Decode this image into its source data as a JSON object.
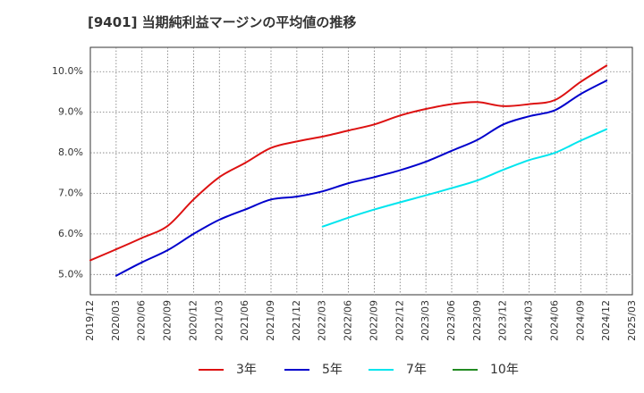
{
  "chart_data": {
    "type": "line",
    "title": "[9401]  当期純利益マージンの平均値の推移",
    "xlabel": "",
    "ylabel": "",
    "ylim": [
      4.5,
      10.6
    ],
    "y_ticks": [
      5.0,
      6.0,
      7.0,
      8.0,
      9.0,
      10.0
    ],
    "y_tick_labels": [
      "5.0%",
      "6.0%",
      "7.0%",
      "8.0%",
      "9.0%",
      "10.0%"
    ],
    "x_tick_labels": [
      "2019/12",
      "2020/03",
      "2020/06",
      "2020/09",
      "2020/12",
      "2021/03",
      "2021/06",
      "2021/09",
      "2021/12",
      "2022/03",
      "2022/06",
      "2022/09",
      "2022/12",
      "2023/03",
      "2023/06",
      "2023/09",
      "2023/12",
      "2024/03",
      "2024/06",
      "2024/09",
      "2024/12",
      "2025/03"
    ],
    "grid": true,
    "legend_position": "bottom",
    "series": [
      {
        "name": "3年",
        "color": "#dd1111",
        "x": [
          "2019/12",
          "2020/03",
          "2020/06",
          "2020/09",
          "2020/12",
          "2021/03",
          "2021/06",
          "2021/09",
          "2021/12",
          "2022/03",
          "2022/06",
          "2022/09",
          "2022/12",
          "2023/03",
          "2023/06",
          "2023/09",
          "2023/12",
          "2024/03",
          "2024/06",
          "2024/09",
          "2024/12"
        ],
        "values": [
          5.35,
          5.62,
          5.9,
          6.2,
          6.85,
          7.4,
          7.75,
          8.12,
          8.28,
          8.4,
          8.55,
          8.7,
          8.92,
          9.08,
          9.2,
          9.25,
          9.15,
          9.2,
          9.3,
          9.75,
          10.15
        ]
      },
      {
        "name": "5年",
        "color": "#0000cc",
        "x": [
          "2020/03",
          "2020/06",
          "2020/09",
          "2020/12",
          "2021/03",
          "2021/06",
          "2021/09",
          "2021/12",
          "2022/03",
          "2022/06",
          "2022/09",
          "2022/12",
          "2023/03",
          "2023/06",
          "2023/09",
          "2023/12",
          "2024/03",
          "2024/06",
          "2024/09",
          "2024/12"
        ],
        "values": [
          4.97,
          5.3,
          5.6,
          6.0,
          6.35,
          6.6,
          6.85,
          6.92,
          7.05,
          7.25,
          7.4,
          7.57,
          7.78,
          8.05,
          8.32,
          8.7,
          8.9,
          9.05,
          9.45,
          9.78
        ]
      },
      {
        "name": "7年",
        "color": "#00e5ee",
        "x": [
          "2022/03",
          "2022/06",
          "2022/09",
          "2022/12",
          "2023/03",
          "2023/06",
          "2023/09",
          "2023/12",
          "2024/03",
          "2024/06",
          "2024/09",
          "2024/12"
        ],
        "values": [
          6.18,
          6.4,
          6.6,
          6.78,
          6.95,
          7.13,
          7.32,
          7.58,
          7.82,
          8.0,
          8.3,
          8.58
        ]
      },
      {
        "name": "10年",
        "color": "#228b22",
        "x": [],
        "values": []
      }
    ]
  }
}
